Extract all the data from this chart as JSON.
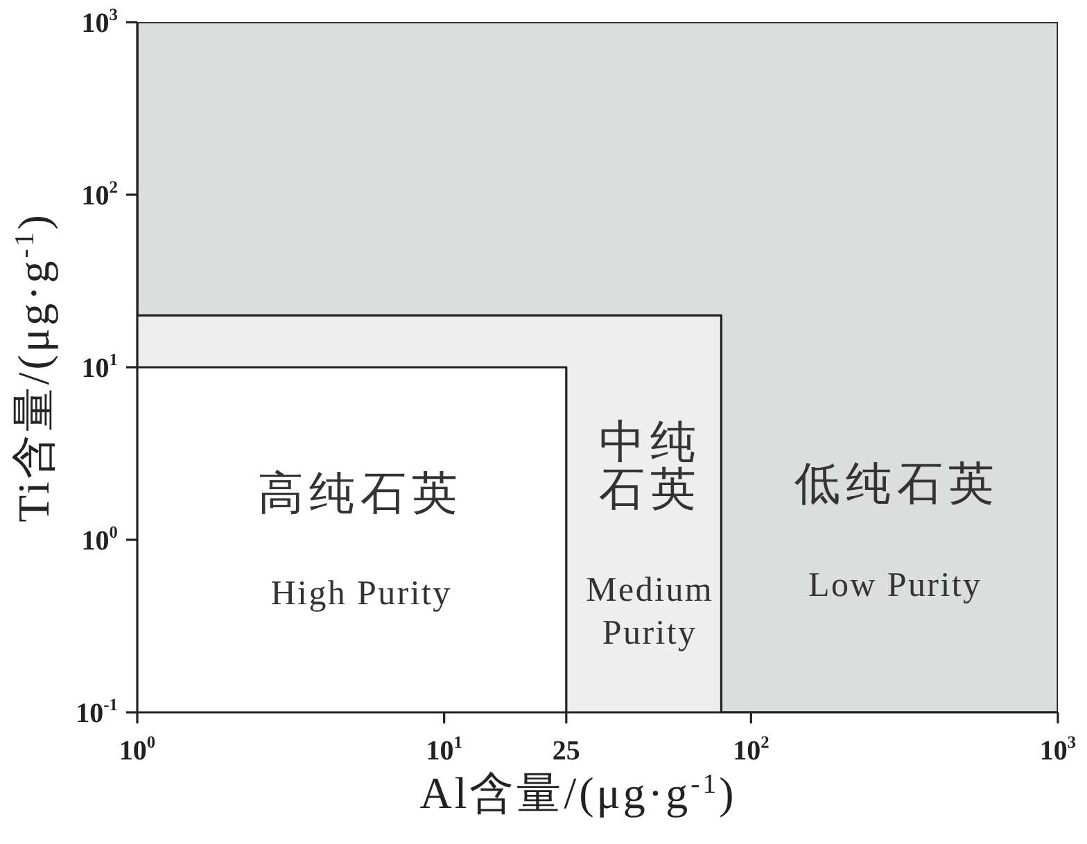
{
  "chart_data": {
    "type": "area",
    "xlabel": "Al含量/(μg·g$^{-1}$)",
    "ylabel": "Ti含量/(μg·g$^{-1}$)",
    "log": "xy",
    "xlim": [
      1,
      1000
    ],
    "ylim": [
      0.1,
      1000
    ],
    "xticks": [
      {
        "value": 1,
        "label": "10$^{0}$"
      },
      {
        "value": 10,
        "label": "10$^{1}$"
      },
      25,
      {
        "value": 100,
        "label": "10$^{2}$"
      },
      {
        "value": 1000,
        "label": "10$^{3}$"
      }
    ],
    "yticks": [
      {
        "value": 0.1,
        "label": "10$^{-1}$"
      },
      {
        "value": 1,
        "label": "10$^{0}$"
      },
      {
        "value": 10,
        "label": "10$^{1}$"
      },
      {
        "value": 100,
        "label": "10$^{2}$"
      },
      {
        "value": 1000,
        "label": "10$^{3}$"
      }
    ],
    "bands": [
      {
        "axis": "x",
        "from": 1,
        "to": 1000,
        "color": "#dcdddd"
      }
    ],
    "series": [
      {
        "color": "#eeeeee",
        "x": [
          1,
          80,
          80
        ],
        "values": [
          20,
          20,
          0.1
        ]
      },
      {
        "color": "#ffffff",
        "x": [
          1,
          25,
          25
        ],
        "values": [
          10,
          10,
          0.1
        ]
      }
    ],
    "annotations": [
      "高纯石英",
      "High Purity",
      "中纯石英",
      "Medium Purity",
      "低纯石英",
      "Low Purity"
    ]
  }
}
